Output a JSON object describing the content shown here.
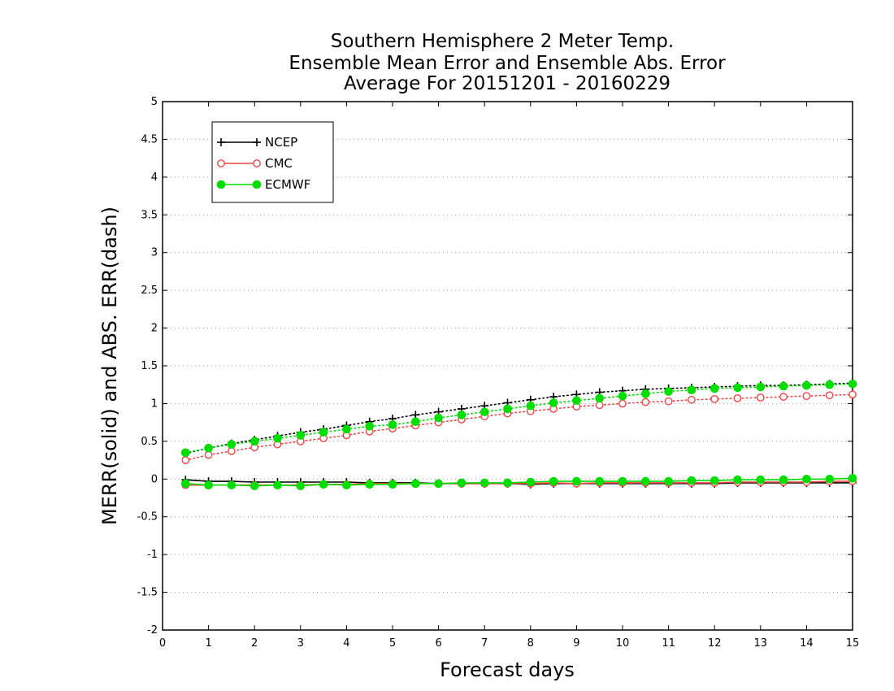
{
  "chart_data": {
    "type": "line",
    "title_lines": [
      "Southern Hemisphere 2 Meter Temp.",
      "Ensemble Mean Error and Ensemble Abs. Error",
      "Average For 20151201 - 20160229"
    ],
    "xlabel": "Forecast days",
    "ylabel": "MERR(solid) and ABS. ERR(dash)",
    "xlim": [
      0,
      15
    ],
    "ylim": [
      -2,
      5
    ],
    "xticks": [
      0,
      1,
      2,
      3,
      4,
      5,
      6,
      7,
      8,
      9,
      10,
      11,
      12,
      13,
      14,
      15
    ],
    "yticks": [
      -2,
      -1.5,
      -1,
      -0.5,
      0,
      0.5,
      1,
      1.5,
      2,
      2.5,
      3,
      3.5,
      4,
      4.5,
      5
    ],
    "ytick_labels": [
      "-2",
      "-1.5",
      "-1",
      "-0.5",
      "0",
      "0.5",
      "1",
      "1.5",
      "2",
      "2.5",
      "3",
      "3.5",
      "4",
      "4.5",
      "5"
    ],
    "grid": "horizontal dotted",
    "legend_position": "top-left",
    "x": [
      0.5,
      1,
      1.5,
      2,
      2.5,
      3,
      3.5,
      4,
      4.5,
      5,
      5.5,
      6,
      6.5,
      7,
      7.5,
      8,
      8.5,
      9,
      9.5,
      10,
      10.5,
      11,
      11.5,
      12,
      12.5,
      13,
      13.5,
      14,
      14.5,
      15
    ],
    "series": [
      {
        "name": "NCEP",
        "color": "#000000",
        "marker": "plus",
        "merr": [
          -0.01,
          -0.03,
          -0.03,
          -0.04,
          -0.04,
          -0.04,
          -0.04,
          -0.04,
          -0.05,
          -0.05,
          -0.05,
          -0.06,
          -0.06,
          -0.06,
          -0.06,
          -0.07,
          -0.06,
          -0.06,
          -0.06,
          -0.06,
          -0.06,
          -0.06,
          -0.06,
          -0.06,
          -0.05,
          -0.05,
          -0.05,
          -0.05,
          -0.05,
          -0.05
        ],
        "abs_err": [
          0.34,
          0.41,
          0.47,
          0.52,
          0.57,
          0.62,
          0.66,
          0.71,
          0.76,
          0.8,
          0.85,
          0.89,
          0.93,
          0.97,
          1.01,
          1.05,
          1.09,
          1.12,
          1.15,
          1.17,
          1.19,
          1.2,
          1.21,
          1.22,
          1.23,
          1.24,
          1.24,
          1.25,
          1.26,
          1.27
        ]
      },
      {
        "name": "CMC",
        "color": "#ee4444",
        "marker": "open-circle",
        "merr": [
          -0.08,
          -0.08,
          -0.08,
          -0.08,
          -0.08,
          -0.08,
          -0.07,
          -0.07,
          -0.06,
          -0.06,
          -0.06,
          -0.06,
          -0.06,
          -0.06,
          -0.06,
          -0.06,
          -0.05,
          -0.06,
          -0.05,
          -0.05,
          -0.05,
          -0.05,
          -0.05,
          -0.05,
          -0.04,
          -0.04,
          -0.04,
          -0.04,
          -0.03,
          -0.03
        ],
        "abs_err": [
          0.25,
          0.32,
          0.37,
          0.42,
          0.46,
          0.5,
          0.54,
          0.58,
          0.63,
          0.67,
          0.71,
          0.75,
          0.79,
          0.83,
          0.87,
          0.9,
          0.93,
          0.96,
          0.98,
          1.0,
          1.02,
          1.03,
          1.05,
          1.06,
          1.07,
          1.08,
          1.09,
          1.1,
          1.11,
          1.12
        ]
      },
      {
        "name": "ECMWF",
        "color": "#00dd00",
        "marker": "filled-circle",
        "merr": [
          -0.06,
          -0.08,
          -0.08,
          -0.09,
          -0.08,
          -0.09,
          -0.07,
          -0.08,
          -0.07,
          -0.07,
          -0.06,
          -0.06,
          -0.05,
          -0.05,
          -0.05,
          -0.04,
          -0.03,
          -0.03,
          -0.03,
          -0.03,
          -0.03,
          -0.03,
          -0.02,
          -0.02,
          -0.01,
          -0.01,
          -0.01,
          0.0,
          0.0,
          0.01
        ],
        "abs_err": [
          0.35,
          0.41,
          0.46,
          0.5,
          0.54,
          0.58,
          0.62,
          0.66,
          0.7,
          0.72,
          0.76,
          0.81,
          0.85,
          0.89,
          0.93,
          0.97,
          1.01,
          1.04,
          1.07,
          1.1,
          1.13,
          1.16,
          1.18,
          1.2,
          1.21,
          1.22,
          1.23,
          1.24,
          1.25,
          1.26
        ]
      }
    ]
  }
}
